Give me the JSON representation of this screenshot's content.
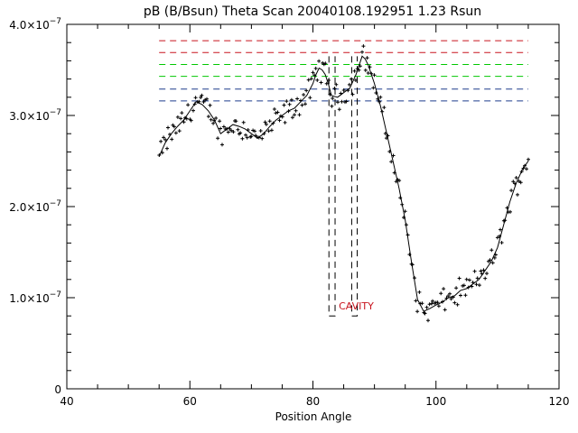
{
  "chart_data": {
    "type": "scatter",
    "title": "pB (B/Bsun) Theta Scan 20040108.192951 1.23 Rsun",
    "xlabel": "Position Angle",
    "ylabel": "",
    "xlim": [
      40,
      120
    ],
    "ylim": [
      0,
      4e-07
    ],
    "x_ticks": [
      {
        "value": 40,
        "label": "40"
      },
      {
        "value": 60,
        "label": "60"
      },
      {
        "value": 80,
        "label": "80"
      },
      {
        "value": 100,
        "label": "100"
      },
      {
        "value": 120,
        "label": "120"
      }
    ],
    "y_ticks": [
      {
        "value": 0,
        "mant": "0",
        "exp": ""
      },
      {
        "value": 1e-07,
        "mant": "1.0×10",
        "exp": "−7"
      },
      {
        "value": 2e-07,
        "mant": "2.0×10",
        "exp": "−7"
      },
      {
        "value": 3e-07,
        "mant": "3.0×10",
        "exp": "−7"
      },
      {
        "value": 4e-07,
        "mant": "4.0×10",
        "exp": "−7"
      }
    ],
    "smooth_curve": {
      "x": [
        55,
        56,
        57,
        58,
        59,
        60,
        61,
        62,
        63,
        64,
        65,
        66,
        67,
        68,
        69,
        70,
        71,
        72,
        73,
        74,
        75,
        76,
        77,
        78,
        79,
        80,
        80.5,
        81,
        81.5,
        82,
        82.5,
        83,
        84,
        85,
        86,
        87,
        87.5,
        88,
        88.5,
        89,
        90,
        91,
        92,
        93,
        94,
        95,
        96,
        97,
        98,
        99,
        100,
        101,
        102,
        103,
        104,
        105,
        106,
        107,
        108,
        109,
        110,
        111,
        112,
        113,
        114,
        115
      ],
      "y": [
        2.55e-07,
        2.7e-07,
        2.8e-07,
        2.88e-07,
        2.95e-07,
        3.05e-07,
        3.15e-07,
        3.12e-07,
        3.05e-07,
        2.95e-07,
        2.8e-07,
        2.85e-07,
        2.9e-07,
        2.88e-07,
        2.85e-07,
        2.8e-07,
        2.75e-07,
        2.8e-07,
        2.88e-07,
        2.95e-07,
        3e-07,
        3.05e-07,
        3.08e-07,
        3.15e-07,
        3.22e-07,
        3.35e-07,
        3.45e-07,
        3.52e-07,
        3.5e-07,
        3.45e-07,
        3.35e-07,
        3.22e-07,
        3.2e-07,
        3.25e-07,
        3.3e-07,
        3.45e-07,
        3.55e-07,
        3.65e-07,
        3.62e-07,
        3.55e-07,
        3.35e-07,
        3.1e-07,
        2.8e-07,
        2.5e-07,
        2.2e-07,
        1.85e-07,
        1.4e-07,
        9.8e-08,
        8.5e-08,
        8.8e-08,
        9.2e-08,
        9.5e-08,
        1e-07,
        1.02e-07,
        1.08e-07,
        1.1e-07,
        1.15e-07,
        1.2e-07,
        1.3e-07,
        1.4e-07,
        1.55e-07,
        1.8e-07,
        2.05e-07,
        2.25e-07,
        2.4e-07,
        2.5e-07
      ]
    },
    "scatter_points": {
      "x_start": 55,
      "x_end": 115,
      "step": 0.25,
      "note": "noisy samples scattered around the smooth curve"
    },
    "reference_lines": [
      {
        "y": 3.82e-07,
        "color": "#c8141e"
      },
      {
        "y": 3.69e-07,
        "color": "#c8141e"
      },
      {
        "y": 3.56e-07,
        "color": "#00c800"
      },
      {
        "y": 3.43e-07,
        "color": "#00c800"
      },
      {
        "y": 3.29e-07,
        "color": "#1e3c8c"
      },
      {
        "y": 3.16e-07,
        "color": "#1e3c8c"
      }
    ],
    "reference_x_range": [
      55,
      115
    ],
    "cavity": {
      "label": "CAVITY",
      "label_color": "#c8141e",
      "boxes": [
        {
          "x1": 82.6,
          "x2": 83.6,
          "y_top": 3.65e-07,
          "y_bottom": 8e-08
        },
        {
          "x1": 86.3,
          "x2": 87.2,
          "y_top": 3.65e-07,
          "y_bottom": 8e-08
        }
      ],
      "label_x": 84.2,
      "label_y": 8.7e-08
    },
    "grid": false
  }
}
